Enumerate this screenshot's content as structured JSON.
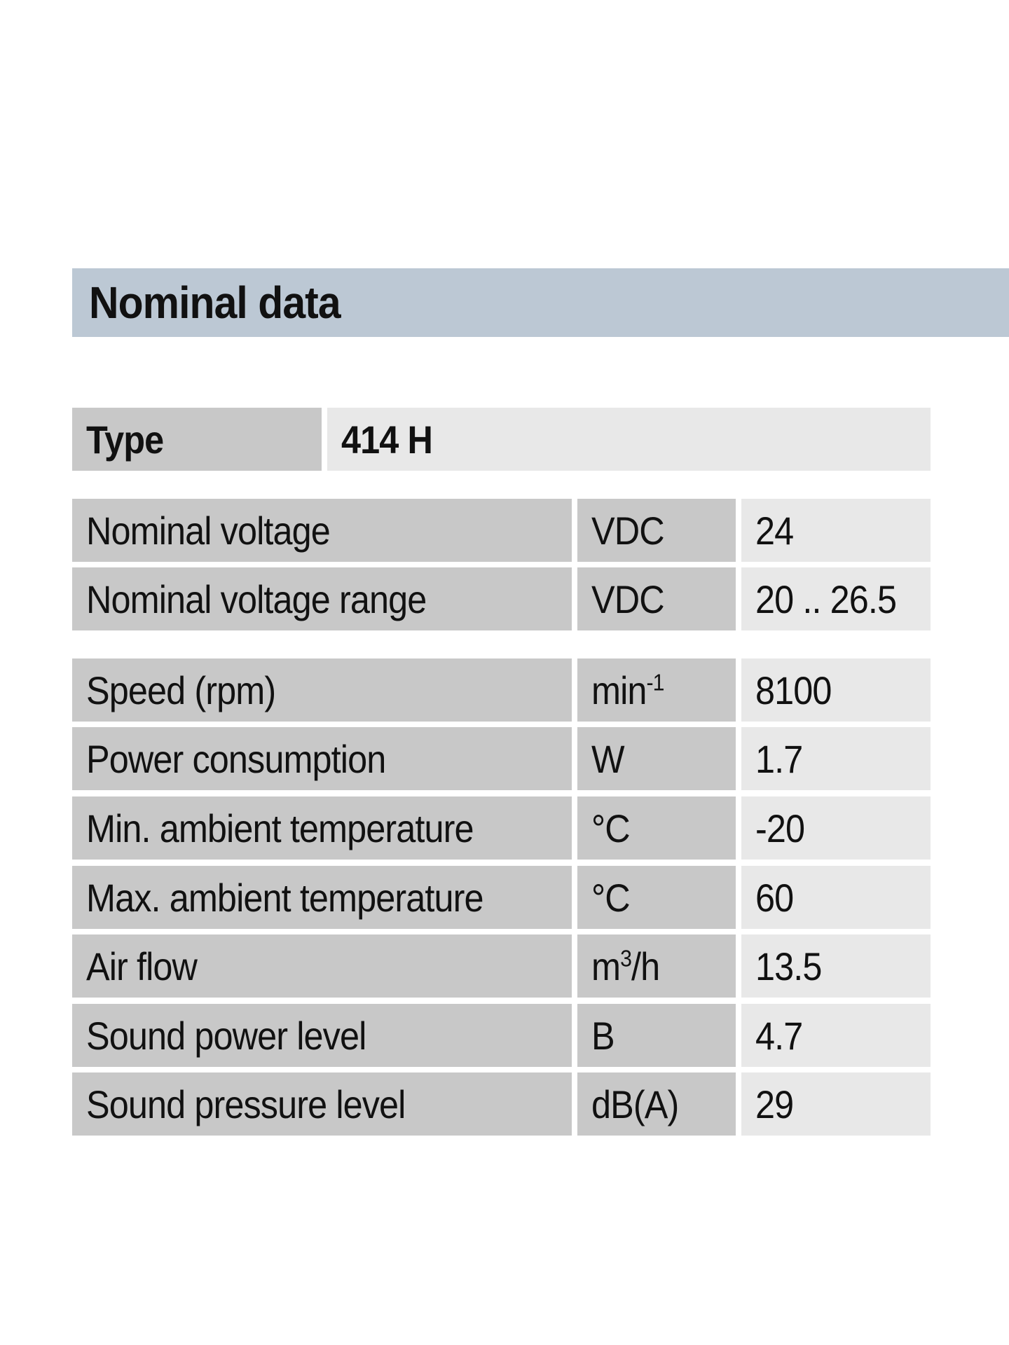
{
  "section": {
    "title": "Nominal data"
  },
  "type": {
    "label": "Type",
    "value": "414 H"
  },
  "group1": [
    {
      "label": "Nominal voltage",
      "unit": "VDC",
      "value": "24"
    },
    {
      "label": "Nominal voltage range",
      "unit": "VDC",
      "value": "20 .. 26.5"
    }
  ],
  "group2": [
    {
      "label": "Speed (rpm)",
      "unit_base": "min",
      "unit_sup": "-1",
      "value": "8100"
    },
    {
      "label": "Power consumption",
      "unit": "W",
      "value": "1.7"
    },
    {
      "label": "Min. ambient temperature",
      "unit": "°C",
      "value": "-20"
    },
    {
      "label": "Max. ambient temperature",
      "unit": "°C",
      "value": "60"
    },
    {
      "label": "Air flow",
      "unit_base": "m",
      "unit_sup": "3",
      "unit_tail": "/h",
      "value": "13.5"
    },
    {
      "label": "Sound power level",
      "unit": "B",
      "value": "4.7"
    },
    {
      "label": "Sound pressure level",
      "unit": "dB(A)",
      "value": "29"
    }
  ]
}
